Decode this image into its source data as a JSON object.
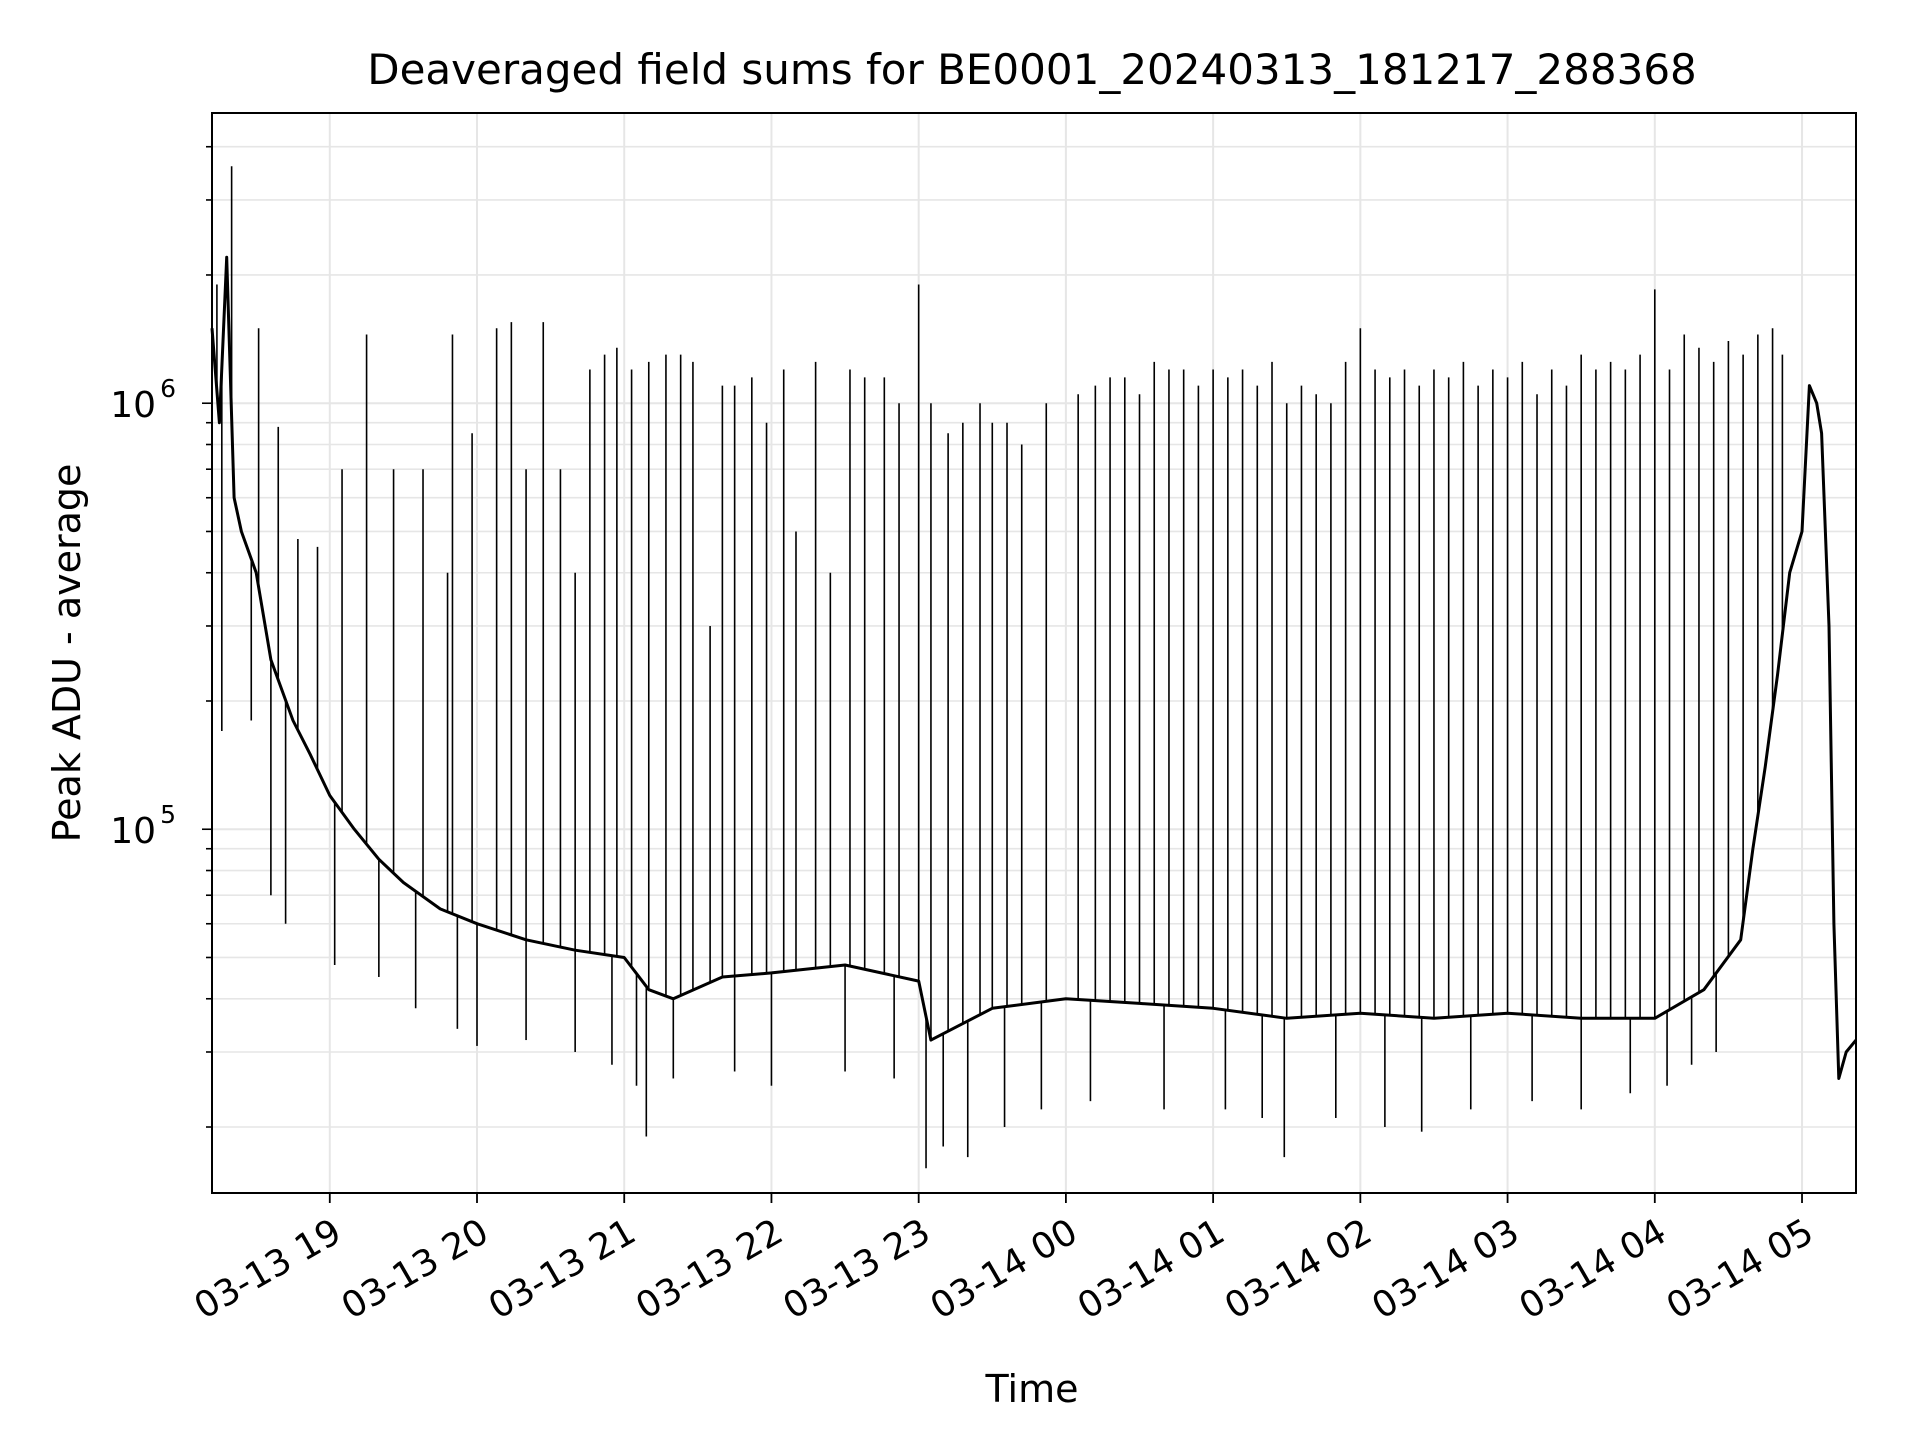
{
  "chart_data": {
    "type": "line",
    "title": "Deaveraged field sums for BE0001_20240313_181217_288368",
    "xlabel": "Time",
    "ylabel": "Peak ADU - average",
    "yscale": "log",
    "xlim": [
      "2024-03-13 18:12",
      "2024-03-14 05:22"
    ],
    "ylim": [
      14000,
      4800000
    ],
    "grid": true,
    "line_color": "#000000",
    "x_ticks": [
      {
        "value": "2024-03-13 19:00",
        "label": "03-13 19"
      },
      {
        "value": "2024-03-13 20:00",
        "label": "03-13 20"
      },
      {
        "value": "2024-03-13 21:00",
        "label": "03-13 21"
      },
      {
        "value": "2024-03-13 22:00",
        "label": "03-13 22"
      },
      {
        "value": "2024-03-13 23:00",
        "label": "03-13 23"
      },
      {
        "value": "2024-03-14 00:00",
        "label": "03-14 00"
      },
      {
        "value": "2024-03-14 01:00",
        "label": "03-14 01"
      },
      {
        "value": "2024-03-14 02:00",
        "label": "03-14 02"
      },
      {
        "value": "2024-03-14 03:00",
        "label": "03-14 03"
      },
      {
        "value": "2024-03-14 04:00",
        "label": "03-14 04"
      },
      {
        "value": "2024-03-14 05:00",
        "label": "03-14 05"
      }
    ],
    "y_ticks": [
      {
        "value": 100000,
        "base": "10",
        "exp": "5"
      },
      {
        "value": 1000000,
        "base": "10",
        "exp": "6"
      }
    ],
    "series": [
      {
        "x": [
          "2024-03-13 18:12",
          "2024-03-13 18:15",
          "2024-03-13 18:18",
          "2024-03-13 18:21",
          "2024-03-13 18:24",
          "2024-03-13 18:30",
          "2024-03-13 18:36",
          "2024-03-13 18:45",
          "2024-03-13 18:52",
          "2024-03-13 19:00",
          "2024-03-13 19:10",
          "2024-03-13 19:20",
          "2024-03-13 19:30",
          "2024-03-13 19:45",
          "2024-03-13 20:00",
          "2024-03-13 20:20",
          "2024-03-13 20:40",
          "2024-03-13 21:00",
          "2024-03-13 21:10",
          "2024-03-13 21:20",
          "2024-03-13 21:40",
          "2024-03-13 22:00",
          "2024-03-13 22:30",
          "2024-03-13 23:00",
          "2024-03-13 23:05",
          "2024-03-13 23:30",
          "2024-03-14 00:00",
          "2024-03-14 00:30",
          "2024-03-14 01:00",
          "2024-03-14 01:30",
          "2024-03-14 02:00",
          "2024-03-14 02:30",
          "2024-03-14 03:00",
          "2024-03-14 03:30",
          "2024-03-14 04:00",
          "2024-03-14 04:20",
          "2024-03-14 04:35",
          "2024-03-14 04:40",
          "2024-03-14 04:45",
          "2024-03-14 04:50",
          "2024-03-14 04:55",
          "2024-03-14 05:00",
          "2024-03-14 05:03",
          "2024-03-14 05:06",
          "2024-03-14 05:08",
          "2024-03-14 05:11",
          "2024-03-14 05:13",
          "2024-03-14 05:15",
          "2024-03-14 05:18",
          "2024-03-14 05:22"
        ],
        "y": [
          1500000,
          900000,
          2200000,
          600000,
          500000,
          400000,
          250000,
          180000,
          150000,
          120000,
          100000,
          85000,
          75000,
          65000,
          60000,
          55000,
          52000,
          50000,
          42000,
          40000,
          45000,
          46000,
          48000,
          44000,
          32000,
          38000,
          40000,
          39000,
          38000,
          36000,
          37000,
          36000,
          37000,
          36000,
          36000,
          42000,
          55000,
          90000,
          140000,
          230000,
          400000,
          500000,
          1100000,
          1000000,
          850000,
          300000,
          60000,
          26000,
          30000,
          32000
        ]
      }
    ],
    "spikes": [
      {
        "x": "2024-03-13 18:14",
        "y": 1900000
      },
      {
        "x": "2024-03-13 18:20",
        "y": 3600000
      },
      {
        "x": "2024-03-13 18:31",
        "y": 1500000
      },
      {
        "x": "2024-03-13 18:39",
        "y": 880000
      },
      {
        "x": "2024-03-13 18:47",
        "y": 480000
      },
      {
        "x": "2024-03-13 18:55",
        "y": 460000
      },
      {
        "x": "2024-03-13 19:05",
        "y": 700000
      },
      {
        "x": "2024-03-13 19:15",
        "y": 1450000
      },
      {
        "x": "2024-03-13 19:26",
        "y": 700000
      },
      {
        "x": "2024-03-13 19:38",
        "y": 700000
      },
      {
        "x": "2024-03-13 19:48",
        "y": 400000
      },
      {
        "x": "2024-03-13 19:50",
        "y": 1450000
      },
      {
        "x": "2024-03-13 19:58",
        "y": 850000
      },
      {
        "x": "2024-03-13 20:08",
        "y": 1500000
      },
      {
        "x": "2024-03-13 20:14",
        "y": 1550000
      },
      {
        "x": "2024-03-13 20:20",
        "y": 700000
      },
      {
        "x": "2024-03-13 20:27",
        "y": 1550000
      },
      {
        "x": "2024-03-13 20:34",
        "y": 700000
      },
      {
        "x": "2024-03-13 20:40",
        "y": 400000
      },
      {
        "x": "2024-03-13 20:46",
        "y": 1200000
      },
      {
        "x": "2024-03-13 20:52",
        "y": 1300000
      },
      {
        "x": "2024-03-13 20:57",
        "y": 1350000
      },
      {
        "x": "2024-03-13 21:03",
        "y": 1200000
      },
      {
        "x": "2024-03-13 21:10",
        "y": 1250000
      },
      {
        "x": "2024-03-13 21:17",
        "y": 1300000
      },
      {
        "x": "2024-03-13 21:23",
        "y": 1300000
      },
      {
        "x": "2024-03-13 21:28",
        "y": 1250000
      },
      {
        "x": "2024-03-13 21:35",
        "y": 300000
      },
      {
        "x": "2024-03-13 21:40",
        "y": 1100000
      },
      {
        "x": "2024-03-13 21:45",
        "y": 1100000
      },
      {
        "x": "2024-03-13 21:52",
        "y": 1150000
      },
      {
        "x": "2024-03-13 21:58",
        "y": 900000
      },
      {
        "x": "2024-03-13 22:05",
        "y": 1200000
      },
      {
        "x": "2024-03-13 22:10",
        "y": 500000
      },
      {
        "x": "2024-03-13 22:18",
        "y": 1250000
      },
      {
        "x": "2024-03-13 22:24",
        "y": 400000
      },
      {
        "x": "2024-03-13 22:32",
        "y": 1200000
      },
      {
        "x": "2024-03-13 22:38",
        "y": 1150000
      },
      {
        "x": "2024-03-13 22:46",
        "y": 1150000
      },
      {
        "x": "2024-03-13 22:52",
        "y": 1000000
      },
      {
        "x": "2024-03-13 23:00",
        "y": 1900000
      },
      {
        "x": "2024-03-13 23:05",
        "y": 1000000
      },
      {
        "x": "2024-03-13 23:12",
        "y": 850000
      },
      {
        "x": "2024-03-13 23:18",
        "y": 900000
      },
      {
        "x": "2024-03-13 23:25",
        "y": 1000000
      },
      {
        "x": "2024-03-13 23:30",
        "y": 900000
      },
      {
        "x": "2024-03-13 23:36",
        "y": 900000
      },
      {
        "x": "2024-03-13 23:42",
        "y": 800000
      },
      {
        "x": "2024-03-13 23:52",
        "y": 1000000
      },
      {
        "x": "2024-03-14 00:05",
        "y": 1050000
      },
      {
        "x": "2024-03-14 00:12",
        "y": 1100000
      },
      {
        "x": "2024-03-14 00:18",
        "y": 1150000
      },
      {
        "x": "2024-03-14 00:24",
        "y": 1150000
      },
      {
        "x": "2024-03-14 00:30",
        "y": 1050000
      },
      {
        "x": "2024-03-14 00:36",
        "y": 1250000
      },
      {
        "x": "2024-03-14 00:42",
        "y": 1200000
      },
      {
        "x": "2024-03-14 00:48",
        "y": 1200000
      },
      {
        "x": "2024-03-14 00:54",
        "y": 1100000
      },
      {
        "x": "2024-03-14 01:00",
        "y": 1200000
      },
      {
        "x": "2024-03-14 01:06",
        "y": 1150000
      },
      {
        "x": "2024-03-14 01:12",
        "y": 1200000
      },
      {
        "x": "2024-03-14 01:18",
        "y": 1100000
      },
      {
        "x": "2024-03-14 01:24",
        "y": 1250000
      },
      {
        "x": "2024-03-14 01:30",
        "y": 1000000
      },
      {
        "x": "2024-03-14 01:36",
        "y": 1100000
      },
      {
        "x": "2024-03-14 01:42",
        "y": 1050000
      },
      {
        "x": "2024-03-14 01:48",
        "y": 1000000
      },
      {
        "x": "2024-03-14 01:54",
        "y": 1250000
      },
      {
        "x": "2024-03-14 02:00",
        "y": 1500000
      },
      {
        "x": "2024-03-14 02:06",
        "y": 1200000
      },
      {
        "x": "2024-03-14 02:12",
        "y": 1150000
      },
      {
        "x": "2024-03-14 02:18",
        "y": 1200000
      },
      {
        "x": "2024-03-14 02:24",
        "y": 1100000
      },
      {
        "x": "2024-03-14 02:30",
        "y": 1200000
      },
      {
        "x": "2024-03-14 02:36",
        "y": 1150000
      },
      {
        "x": "2024-03-14 02:42",
        "y": 1250000
      },
      {
        "x": "2024-03-14 02:48",
        "y": 1100000
      },
      {
        "x": "2024-03-14 02:54",
        "y": 1200000
      },
      {
        "x": "2024-03-14 03:00",
        "y": 1150000
      },
      {
        "x": "2024-03-14 03:06",
        "y": 1250000
      },
      {
        "x": "2024-03-14 03:12",
        "y": 1050000
      },
      {
        "x": "2024-03-14 03:18",
        "y": 1200000
      },
      {
        "x": "2024-03-14 03:24",
        "y": 1100000
      },
      {
        "x": "2024-03-14 03:30",
        "y": 1300000
      },
      {
        "x": "2024-03-14 03:36",
        "y": 1200000
      },
      {
        "x": "2024-03-14 03:42",
        "y": 1250000
      },
      {
        "x": "2024-03-14 03:48",
        "y": 1200000
      },
      {
        "x": "2024-03-14 03:54",
        "y": 1300000
      },
      {
        "x": "2024-03-14 04:00",
        "y": 1850000
      },
      {
        "x": "2024-03-14 04:06",
        "y": 1200000
      },
      {
        "x": "2024-03-14 04:12",
        "y": 1450000
      },
      {
        "x": "2024-03-14 04:18",
        "y": 1350000
      },
      {
        "x": "2024-03-14 04:24",
        "y": 1250000
      },
      {
        "x": "2024-03-14 04:30",
        "y": 1400000
      },
      {
        "x": "2024-03-14 04:36",
        "y": 1300000
      },
      {
        "x": "2024-03-14 04:42",
        "y": 1450000
      },
      {
        "x": "2024-03-14 04:48",
        "y": 1500000
      },
      {
        "x": "2024-03-14 04:52",
        "y": 1300000
      }
    ],
    "dips": [
      {
        "x": "2024-03-13 18:16",
        "y": 170000
      },
      {
        "x": "2024-03-13 18:28",
        "y": 180000
      },
      {
        "x": "2024-03-13 18:36",
        "y": 70000
      },
      {
        "x": "2024-03-13 18:42",
        "y": 60000
      },
      {
        "x": "2024-03-13 19:02",
        "y": 48000
      },
      {
        "x": "2024-03-13 19:20",
        "y": 45000
      },
      {
        "x": "2024-03-13 19:35",
        "y": 38000
      },
      {
        "x": "2024-03-13 19:52",
        "y": 34000
      },
      {
        "x": "2024-03-13 20:00",
        "y": 31000
      },
      {
        "x": "2024-03-13 20:20",
        "y": 32000
      },
      {
        "x": "2024-03-13 20:40",
        "y": 30000
      },
      {
        "x": "2024-03-13 20:55",
        "y": 28000
      },
      {
        "x": "2024-03-13 21:05",
        "y": 25000
      },
      {
        "x": "2024-03-13 21:09",
        "y": 19000
      },
      {
        "x": "2024-03-13 21:20",
        "y": 26000
      },
      {
        "x": "2024-03-13 21:45",
        "y": 27000
      },
      {
        "x": "2024-03-13 22:00",
        "y": 25000
      },
      {
        "x": "2024-03-13 22:30",
        "y": 27000
      },
      {
        "x": "2024-03-13 22:50",
        "y": 26000
      },
      {
        "x": "2024-03-13 23:03",
        "y": 16000
      },
      {
        "x": "2024-03-13 23:10",
        "y": 18000
      },
      {
        "x": "2024-03-13 23:20",
        "y": 17000
      },
      {
        "x": "2024-03-13 23:35",
        "y": 20000
      },
      {
        "x": "2024-03-13 23:50",
        "y": 22000
      },
      {
        "x": "2024-03-14 00:10",
        "y": 23000
      },
      {
        "x": "2024-03-14 00:40",
        "y": 22000
      },
      {
        "x": "2024-03-14 01:05",
        "y": 22000
      },
      {
        "x": "2024-03-14 01:20",
        "y": 21000
      },
      {
        "x": "2024-03-14 01:29",
        "y": 17000
      },
      {
        "x": "2024-03-14 01:50",
        "y": 21000
      },
      {
        "x": "2024-03-14 02:10",
        "y": 20000
      },
      {
        "x": "2024-03-14 02:25",
        "y": 19500
      },
      {
        "x": "2024-03-14 02:45",
        "y": 22000
      },
      {
        "x": "2024-03-14 03:10",
        "y": 23000
      },
      {
        "x": "2024-03-14 03:30",
        "y": 22000
      },
      {
        "x": "2024-03-14 03:50",
        "y": 24000
      },
      {
        "x": "2024-03-14 04:05",
        "y": 25000
      },
      {
        "x": "2024-03-14 04:15",
        "y": 28000
      },
      {
        "x": "2024-03-14 04:25",
        "y": 30000
      }
    ]
  }
}
